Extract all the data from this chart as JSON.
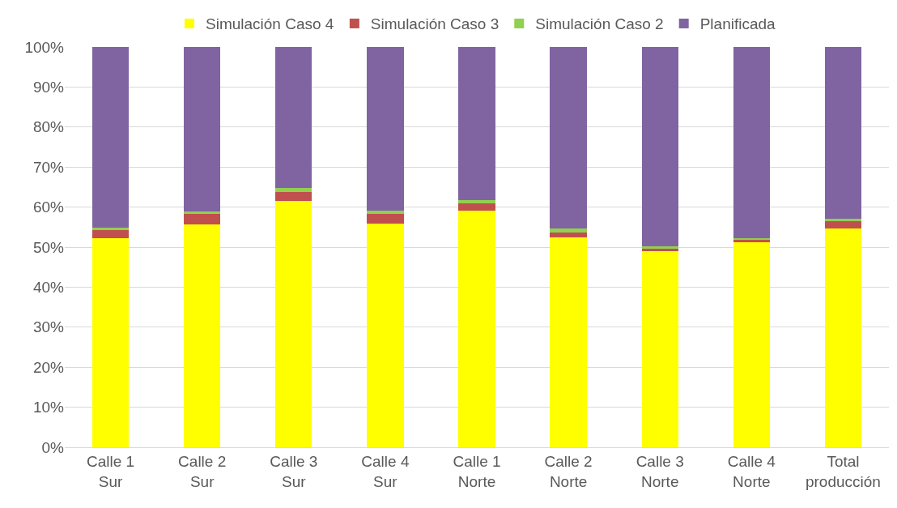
{
  "chart_data": {
    "type": "bar",
    "stacked": true,
    "categories": [
      "Calle 1\nSur",
      "Calle 2\nSur",
      "Calle 3\nSur",
      "Calle 4\nSur",
      "Calle 1\nNorte",
      "Calle 2\nNorte",
      "Calle 3\nNorte",
      "Calle 4\nNorte",
      "Total\nproducción"
    ],
    "series": [
      {
        "name": "Simulación Caso 4",
        "color": "#ffff00",
        "values": [
          52.2,
          55.6,
          61.6,
          55.9,
          59.1,
          52.5,
          48.9,
          51.2,
          54.7
        ]
      },
      {
        "name": "Simulación Caso 3",
        "color": "#c0504d",
        "values": [
          2.0,
          2.6,
          2.2,
          2.5,
          1.9,
          1.2,
          0.6,
          0.7,
          1.7
        ]
      },
      {
        "name": "Simulación Caso 2",
        "color": "#92d050",
        "values": [
          0.7,
          0.8,
          0.9,
          0.7,
          0.7,
          0.9,
          0.7,
          0.3,
          0.7
        ]
      },
      {
        "name": "Planificada",
        "color": "#8064a2",
        "values": [
          45.1,
          41.0,
          35.3,
          40.9,
          38.3,
          45.4,
          49.8,
          47.8,
          42.9
        ]
      }
    ],
    "ylim": [
      0,
      100
    ],
    "yticks": [
      {
        "value": 0,
        "label": "0%"
      },
      {
        "value": 10,
        "label": "10%"
      },
      {
        "value": 20,
        "label": "20%"
      },
      {
        "value": 30,
        "label": "30%"
      },
      {
        "value": 40,
        "label": "40%"
      },
      {
        "value": 50,
        "label": "50%"
      },
      {
        "value": 60,
        "label": "60%"
      },
      {
        "value": 70,
        "label": "70%"
      },
      {
        "value": 80,
        "label": "80%"
      },
      {
        "value": 90,
        "label": "90%"
      },
      {
        "value": 100,
        "label": "100%"
      }
    ],
    "grid": "y",
    "legend": "top"
  }
}
